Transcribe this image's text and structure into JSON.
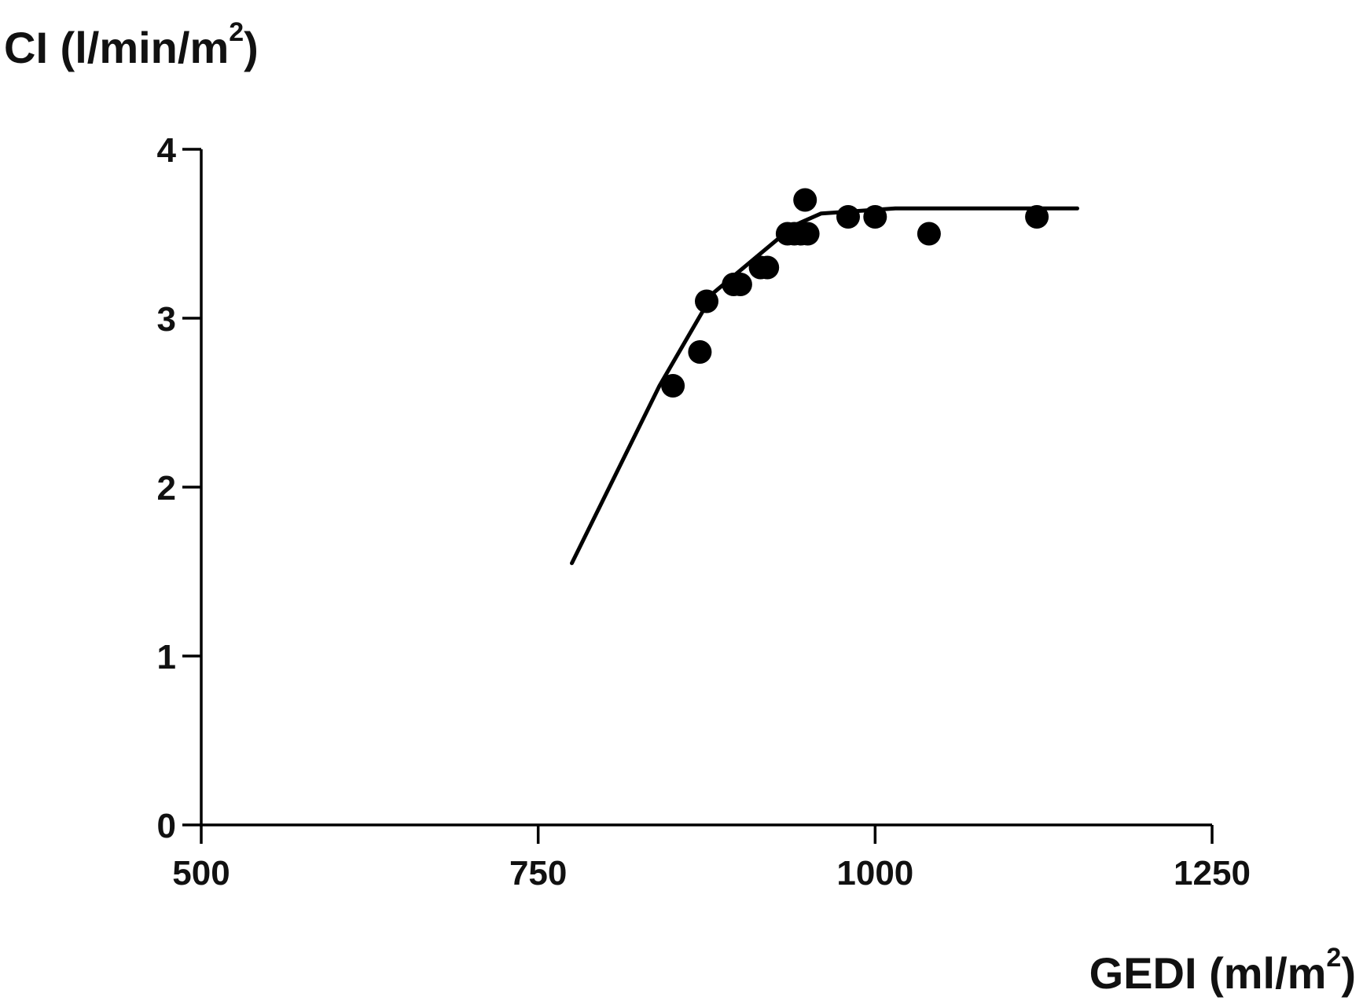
{
  "chart_data": {
    "type": "scatter",
    "ylabel": {
      "text": "CI (l/min/m",
      "sup": "2",
      "close": ")"
    },
    "xlabel": {
      "text": "GEDI (ml/m",
      "sup": "2",
      "close": ")"
    },
    "xlim": [
      500,
      1250
    ],
    "ylim": [
      0,
      4
    ],
    "x_ticks": [
      500,
      750,
      1000,
      1250
    ],
    "x_tick_labels": [
      "500",
      "750",
      "1000",
      "1250"
    ],
    "y_ticks": [
      0,
      1,
      2,
      3,
      4
    ],
    "y_tick_labels": [
      "0",
      "1",
      "2",
      "3",
      "4"
    ],
    "grid": false,
    "series": [
      {
        "kind": "points",
        "x": [
          850,
          870,
          875,
          895,
          900,
          915,
          920,
          935,
          940,
          945,
          948,
          950,
          980,
          1000,
          1040,
          1120
        ],
        "y": [
          2.6,
          2.8,
          3.1,
          3.2,
          3.2,
          3.3,
          3.3,
          3.5,
          3.5,
          3.5,
          3.7,
          3.5,
          3.6,
          3.6,
          3.5,
          3.6
        ]
      },
      {
        "kind": "fit-line",
        "x": [
          775,
          840,
          880,
          910,
          940,
          960,
          1015,
          1150
        ],
        "y": [
          1.55,
          2.6,
          3.15,
          3.35,
          3.55,
          3.62,
          3.65,
          3.65
        ]
      }
    ]
  }
}
